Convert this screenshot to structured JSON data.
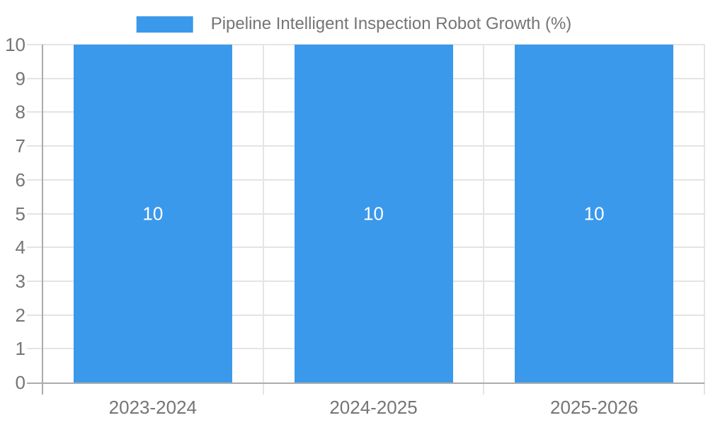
{
  "chart_data": {
    "type": "bar",
    "title": "Pipeline Intelligent Inspection Robot Growth (%)",
    "categories": [
      "2023-2024",
      "2024-2025",
      "2025-2026"
    ],
    "series": [
      {
        "name": "Pipeline Intelligent Inspection Robot Growth (%)",
        "values": [
          10,
          10,
          10
        ],
        "data_labels": [
          "10",
          "10",
          "10"
        ]
      }
    ],
    "xlabel": "",
    "ylabel": "",
    "ylim": [
      0,
      10
    ],
    "y_ticks": [
      0,
      1,
      2,
      3,
      4,
      5,
      6,
      7,
      8,
      9,
      10
    ],
    "grid": true,
    "legend_position": "top-center",
    "colors": {
      "bar": "#3B99EC",
      "gridline": "#E4E4E4",
      "axis": "#ABABAB",
      "tick_text": "#757575",
      "bar_label_text": "#FFFFFF",
      "background": "#FFFFFF"
    }
  },
  "legend": {
    "label": "Pipeline Intelligent Inspection Robot Growth (%)"
  }
}
